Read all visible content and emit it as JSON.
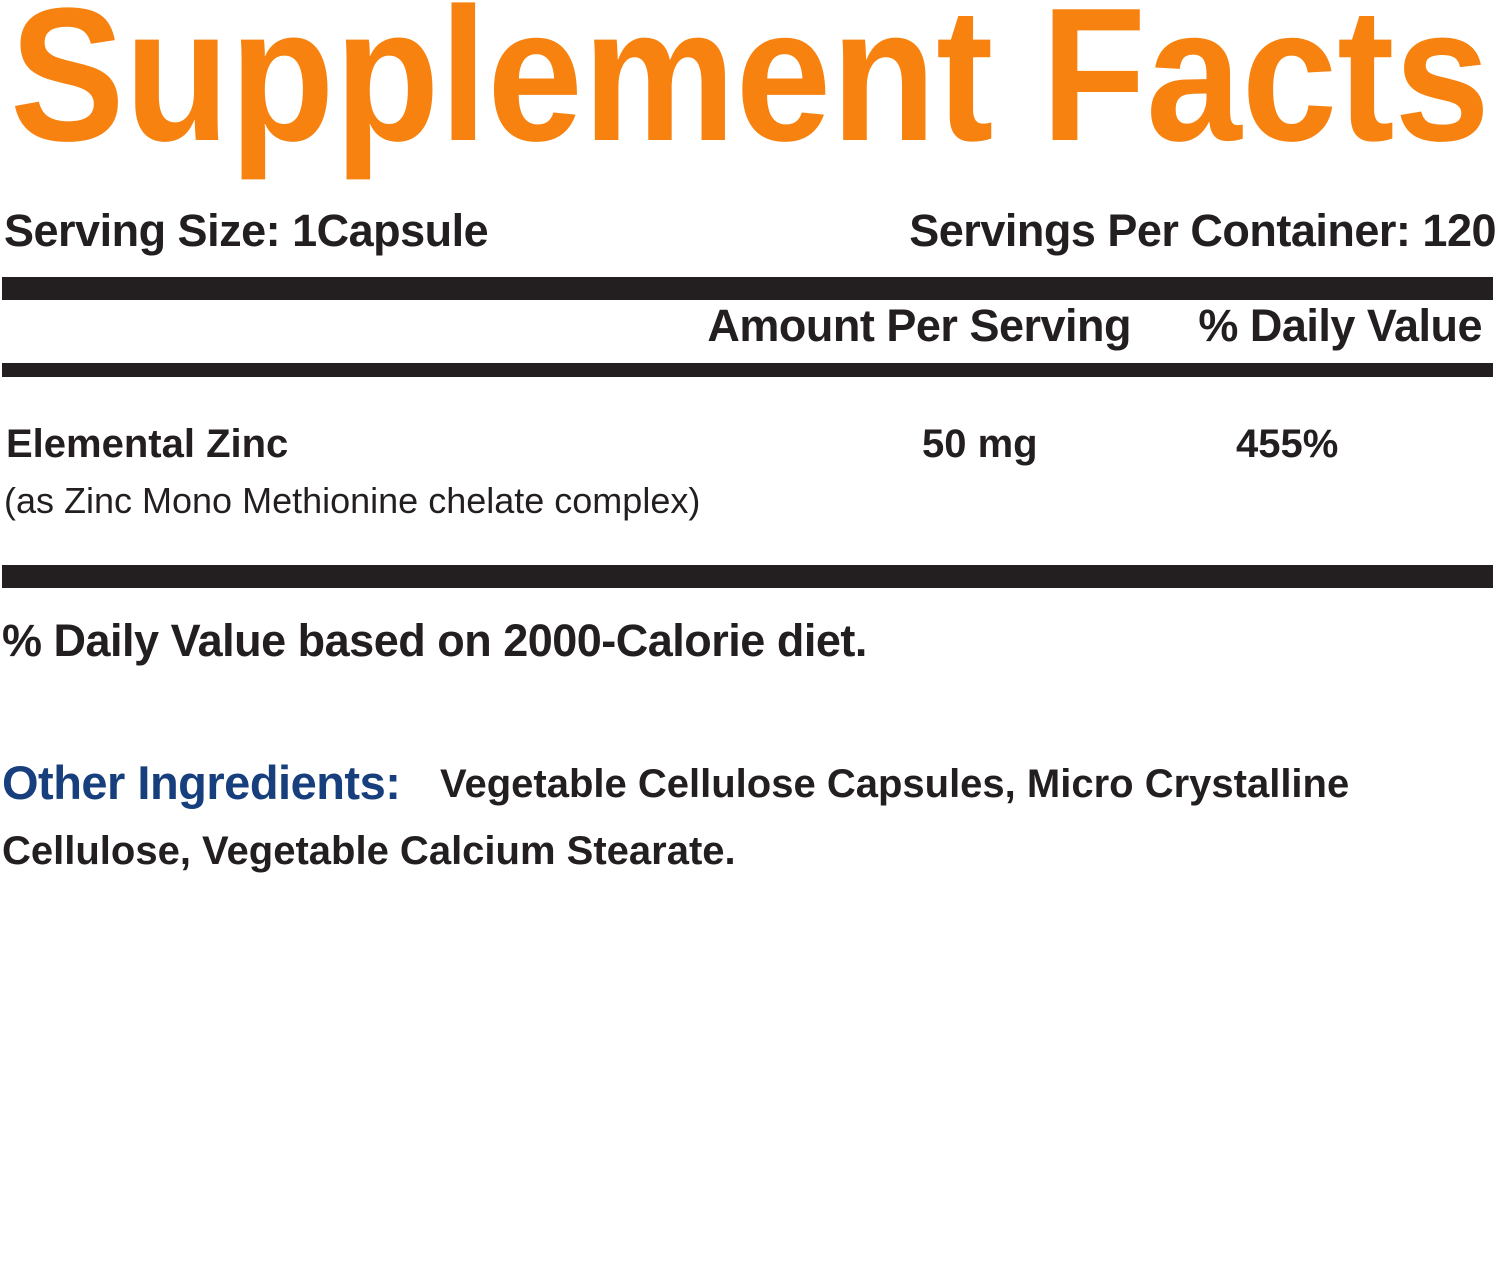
{
  "title": "Supplement Facts",
  "colors": {
    "title": "#f7820f",
    "other_ingredients_label": "#173f7d",
    "text": "#231f20"
  },
  "serving_size": "Serving Size: 1Capsule",
  "servings_per_container": "Servings Per Container: 120",
  "header": {
    "amount": "Amount Per Serving",
    "daily_value": "% Daily Value"
  },
  "nutrients": [
    {
      "name": "Elemental Zinc",
      "detail": "(as Zinc Mono Methionine chelate complex)",
      "amount": "50 mg",
      "daily_value": "455%"
    }
  ],
  "footnote": "% Daily Value based on 2000-Calorie diet.",
  "other_ingredients": {
    "label": "Other Ingredients:",
    "line1": "Vegetable Cellulose Capsules, Micro Crystalline",
    "line2": "Cellulose, Vegetable Calcium Stearate."
  }
}
